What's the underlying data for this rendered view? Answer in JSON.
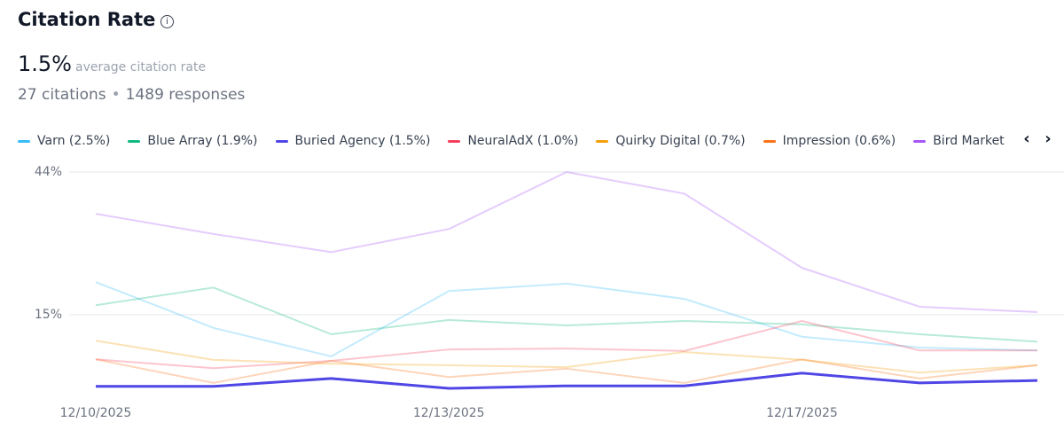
{
  "header": {
    "title": "Citation Rate",
    "average": "1.5%",
    "average_label": "average citation rate",
    "citations": "27 citations",
    "responses": "1489 responses"
  },
  "chart_data": {
    "type": "line",
    "categories": [
      "12/10/2025",
      null,
      null,
      "12/13/2025",
      null,
      null,
      "12/17/2025",
      null,
      null
    ],
    "ylim": [
      0,
      44
    ],
    "yticks": [
      {
        "value": 15,
        "label": "15%"
      },
      {
        "value": 44,
        "label": "44%"
      }
    ],
    "grid": true,
    "series": [
      {
        "name": "Varn (2.5%)",
        "color": "#38bdf8",
        "highlight": false,
        "values": [
          21.6,
          12.3,
          6.5,
          19.8,
          21.3,
          18.2,
          10.5,
          8.3,
          7.7
        ]
      },
      {
        "name": "Blue Array (1.9%)",
        "color": "#10b981",
        "highlight": false,
        "values": [
          16.9,
          20.5,
          11,
          13.9,
          12.8,
          13.7,
          13,
          11,
          9.5
        ]
      },
      {
        "name": "Buried Agency (1.5%)",
        "color": "#4f46e5",
        "highlight": true,
        "values": [
          0.4,
          0.4,
          2.0,
          0,
          0.5,
          0.5,
          3.1,
          1.1,
          1.6
        ]
      },
      {
        "name": "NeuralAdX (1.0%)",
        "color": "#f43f5e",
        "highlight": false,
        "values": [
          5.9,
          4.1,
          5.6,
          7.9,
          8.1,
          7.6,
          13.7,
          7.7,
          7.7
        ]
      },
      {
        "name": "Quirky Digital (0.7%)",
        "color": "#f59e0b",
        "highlight": false,
        "values": [
          9.7,
          5.8,
          5.0,
          4.7,
          4.3,
          7.4,
          5.8,
          3.2,
          4.7
        ]
      },
      {
        "name": "Impression (0.6%)",
        "color": "#f97316",
        "highlight": false,
        "values": [
          5.9,
          1.1,
          5.6,
          2.3,
          4,
          1.1,
          5.9,
          2,
          4.7
        ]
      },
      {
        "name": "Bird Market",
        "color": "#a855f7",
        "highlight": false,
        "values": [
          35.5,
          31.4,
          27.7,
          32.4,
          44,
          39.6,
          24.5,
          16.6,
          15.5
        ]
      }
    ]
  }
}
